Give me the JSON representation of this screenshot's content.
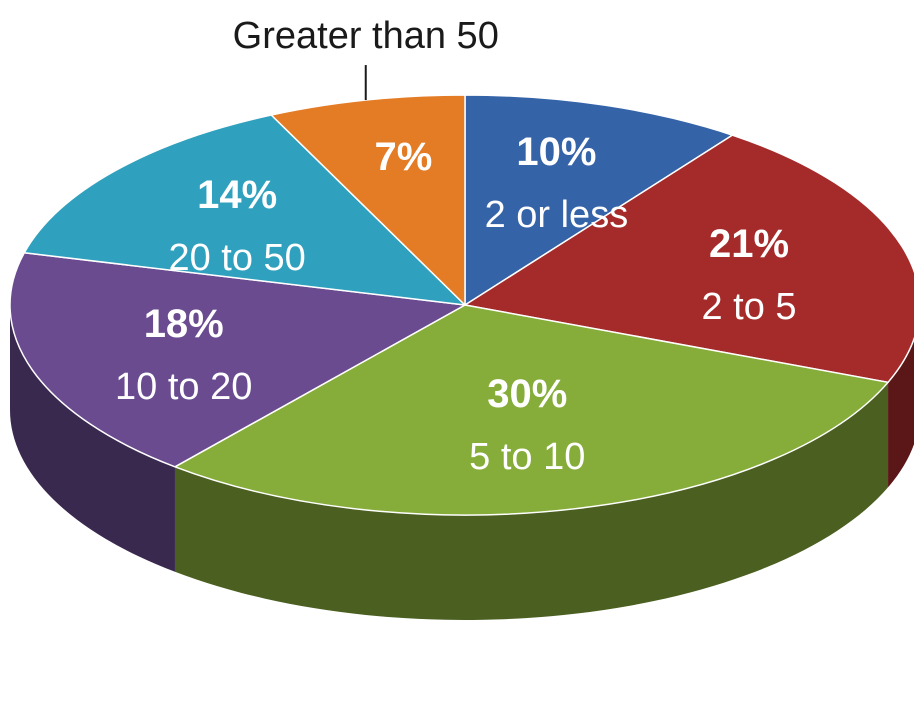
{
  "chart_data": {
    "type": "pie",
    "categories": [
      "2 or less",
      "2 to 5",
      "5 to 10",
      "10 to 20",
      "20 to 50",
      "Greater than 50"
    ],
    "values": [
      10,
      21,
      30,
      18,
      14,
      7
    ],
    "value_labels": [
      "10%",
      "21%",
      "30%",
      "18%",
      "14%",
      "7%"
    ],
    "colors": [
      "#3563a8",
      "#a52a2a",
      "#86ad3a",
      "#6a4b90",
      "#2fa0bd",
      "#e47b25"
    ],
    "three_d": true,
    "legend": "none",
    "title": "",
    "xlabel": "",
    "ylabel": ""
  }
}
